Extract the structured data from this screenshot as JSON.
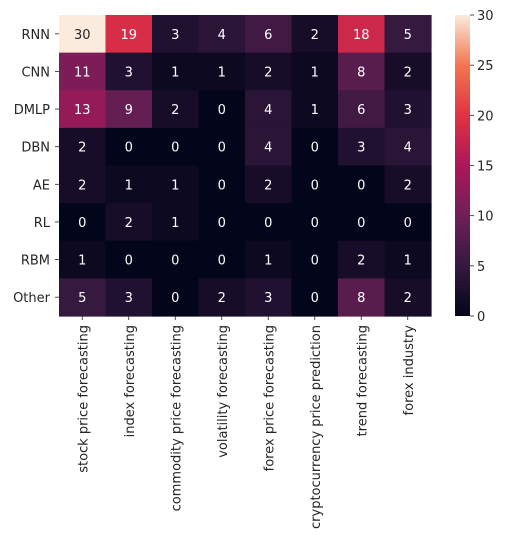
{
  "chart_data": {
    "type": "heatmap",
    "title": "",
    "xlabel": "",
    "ylabel": "",
    "rows": [
      "RNN",
      "CNN",
      "DMLP",
      "DBN",
      "AE",
      "RL",
      "RBM",
      "Other"
    ],
    "columns": [
      "stock price forecasting",
      "index forecasting",
      "commodity price forecasting",
      "volatility forecasting",
      "forex price forecasting",
      "cryptocurrency price prediction",
      "trend forecasting",
      "forex industry"
    ],
    "values": [
      [
        30,
        19,
        3,
        4,
        6,
        2,
        18,
        5
      ],
      [
        11,
        3,
        1,
        1,
        2,
        1,
        8,
        2
      ],
      [
        13,
        9,
        2,
        0,
        4,
        1,
        6,
        3
      ],
      [
        2,
        0,
        0,
        0,
        4,
        0,
        3,
        4
      ],
      [
        2,
        1,
        1,
        0,
        2,
        0,
        0,
        2
      ],
      [
        0,
        2,
        1,
        0,
        0,
        0,
        0,
        0
      ],
      [
        1,
        0,
        0,
        0,
        1,
        0,
        2,
        1
      ],
      [
        5,
        3,
        0,
        2,
        3,
        0,
        8,
        2
      ]
    ],
    "colorbar": {
      "range": [
        0,
        30
      ],
      "ticks": [
        0,
        5,
        10,
        15,
        20,
        25,
        30
      ],
      "colormap": "rocket"
    },
    "grid": false,
    "legend": "colorbar-right"
  }
}
